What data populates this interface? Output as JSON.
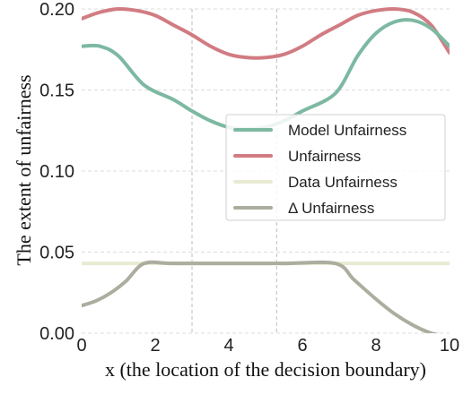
{
  "chart_data": {
    "type": "line",
    "xlabel": "x (the location of the decision boundary)",
    "ylabel": "The extent of unfairness",
    "xlim": [
      0,
      10
    ],
    "ylim": [
      0,
      0.2
    ],
    "xticks": [
      0,
      2,
      4,
      6,
      8,
      10
    ],
    "xtick_labels": [
      "0",
      "2",
      "4",
      "6",
      "8",
      "10"
    ],
    "yticks": [
      0,
      0.05,
      0.1,
      0.15,
      0.2
    ],
    "ytick_labels": [
      "0.00",
      "0.05",
      "0.10",
      "0.15",
      "0.20"
    ],
    "grid": true,
    "legend_position": "center-right",
    "vlines": [
      3.0,
      5.3
    ],
    "series": [
      {
        "name": "Model Unfairness",
        "color": "#7db9a2",
        "x": [
          0,
          0.5,
          1,
          1.7,
          2.5,
          3,
          3.5,
          4,
          4.5,
          5,
          5.5,
          6,
          6.9,
          7.5,
          8,
          8.5,
          9,
          9.5,
          10
        ],
        "y": [
          0.177,
          0.177,
          0.171,
          0.153,
          0.144,
          0.137,
          0.131,
          0.127,
          0.126,
          0.127,
          0.131,
          0.137,
          0.148,
          0.171,
          0.185,
          0.192,
          0.193,
          0.188,
          0.177
        ]
      },
      {
        "name": "Unfairness",
        "color": "#d17c82",
        "x": [
          0,
          0.5,
          1,
          1.5,
          2,
          2.5,
          3,
          3.5,
          4,
          4.5,
          5,
          5.5,
          6,
          6.5,
          7,
          7.5,
          8,
          8.5,
          9,
          9.5,
          10
        ],
        "y": [
          0.194,
          0.198,
          0.2,
          0.199,
          0.196,
          0.19,
          0.184,
          0.177,
          0.172,
          0.17,
          0.17,
          0.172,
          0.177,
          0.184,
          0.19,
          0.196,
          0.199,
          0.2,
          0.198,
          0.19,
          0.173
        ]
      },
      {
        "name": "Data Unfairness",
        "color": "#e9ead2",
        "x": [
          0,
          10
        ],
        "y": [
          0.043,
          0.043
        ]
      },
      {
        "name": "Δ Unfairness",
        "color": "#adad9f",
        "x": [
          0,
          0.4,
          0.8,
          1.2,
          1.7,
          2.5,
          4,
          5.5,
          6.9,
          7.4,
          8,
          8.5,
          9,
          9.5,
          10
        ],
        "y": [
          0.017,
          0.02,
          0.025,
          0.032,
          0.043,
          0.043,
          0.043,
          0.043,
          0.043,
          0.033,
          0.021,
          0.012,
          0.005,
          0.0,
          -0.002
        ]
      }
    ]
  }
}
